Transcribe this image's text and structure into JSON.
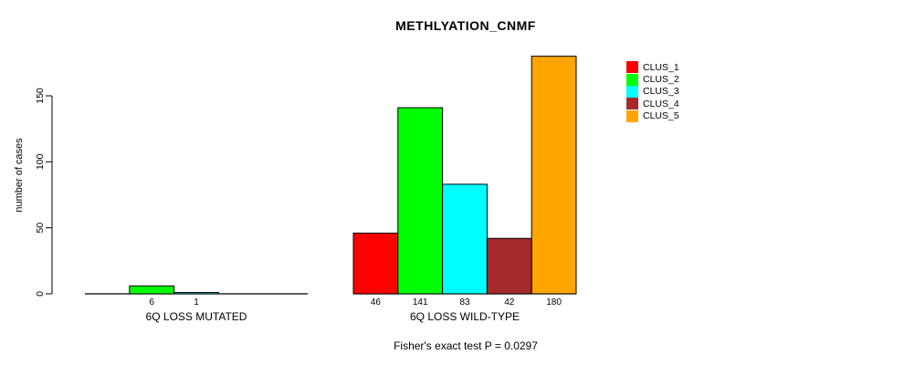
{
  "title": "METHLYATION_CNMF",
  "footer": "Fisher's exact test P = 0.0297",
  "chart_data": {
    "type": "bar",
    "title": "METHLYATION_CNMF",
    "xlabel": "",
    "ylabel": "number of cases",
    "ylim": [
      0,
      180
    ],
    "yticks": [
      0,
      50,
      100,
      150
    ],
    "grid": false,
    "legend_position": "right",
    "series": [
      {
        "name": "CLUS_1",
        "color": "#FF0000"
      },
      {
        "name": "CLUS_2",
        "color": "#00FF00"
      },
      {
        "name": "CLUS_3",
        "color": "#00FFFF"
      },
      {
        "name": "CLUS_4",
        "color": "#A52A2A"
      },
      {
        "name": "CLUS_5",
        "color": "#FFA500"
      }
    ],
    "groups": [
      {
        "label": "6Q LOSS MUTATED",
        "values": [
          0,
          6,
          1,
          0,
          0
        ]
      },
      {
        "label": "6Q LOSS WILD-TYPE",
        "values": [
          46,
          141,
          83,
          42,
          180
        ]
      }
    ],
    "annotation": "Fisher's exact test P = 0.0297"
  }
}
